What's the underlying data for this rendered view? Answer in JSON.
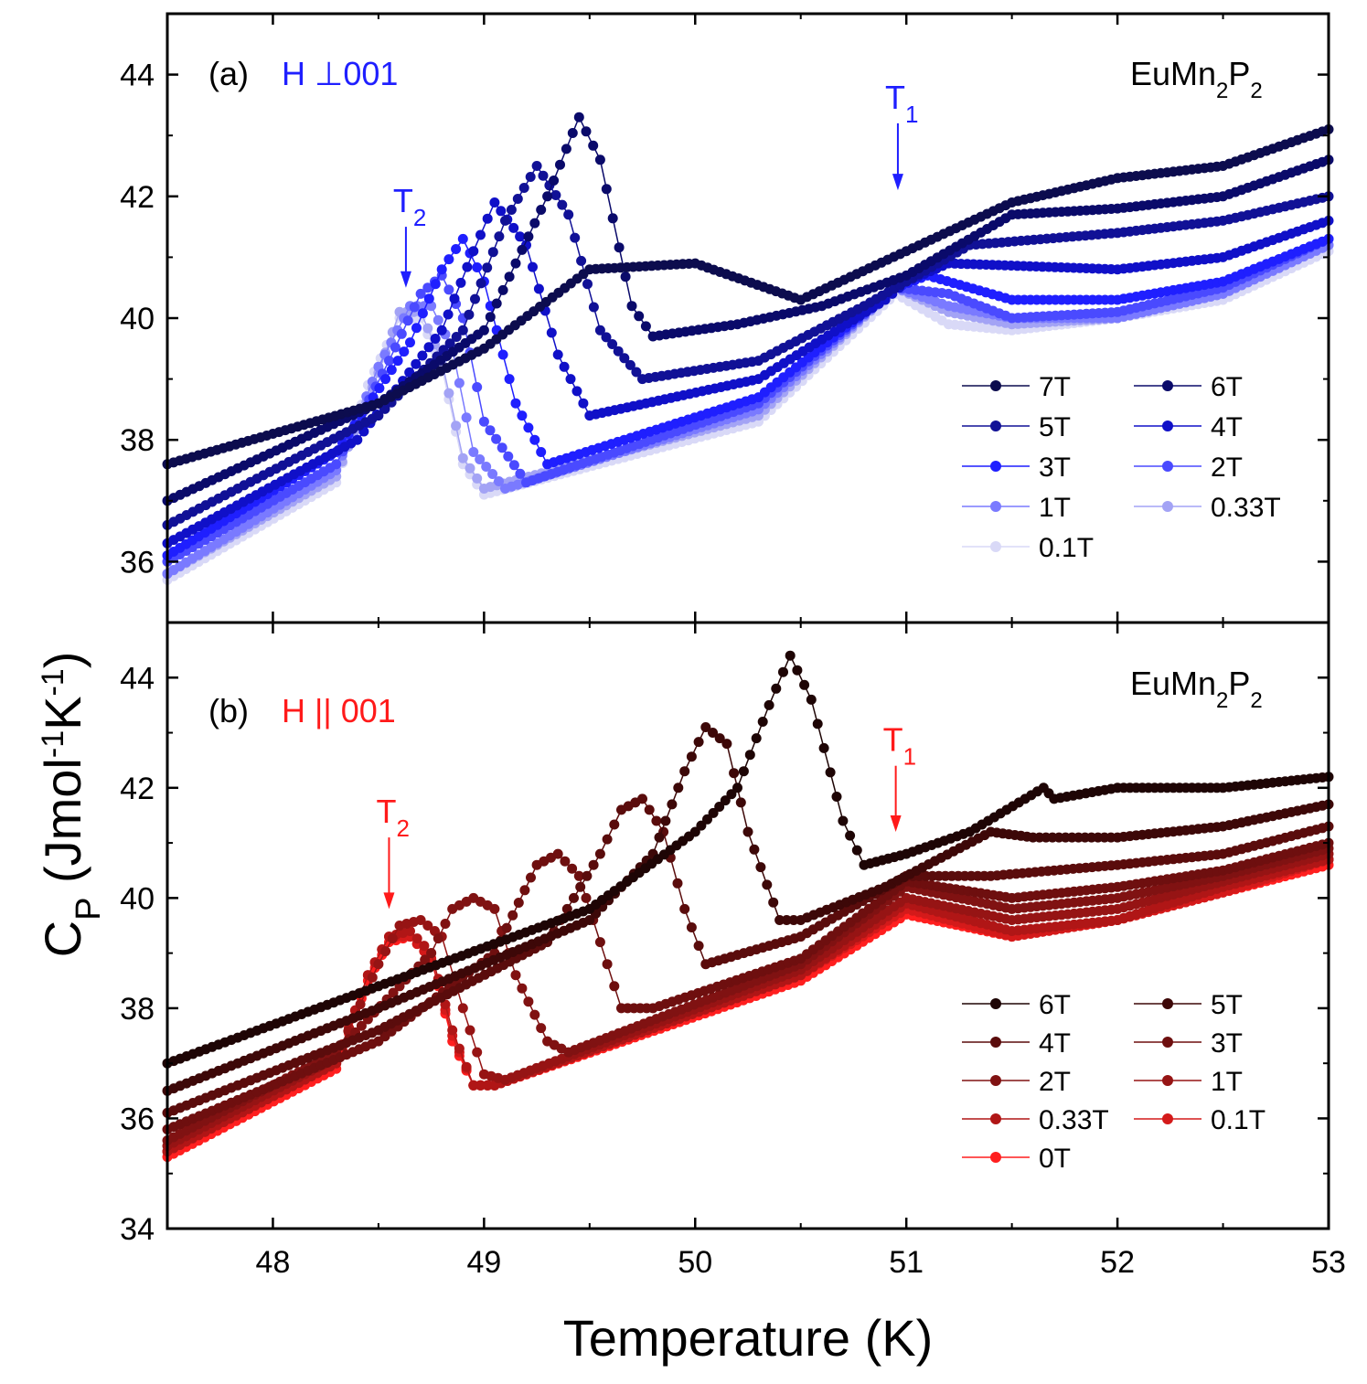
{
  "chart_data": [
    {
      "type": "line",
      "panel_label": "(a)",
      "orientation_label": "H ⊥001",
      "orientation_color": "#1f1fff",
      "compound": {
        "base": "EuMn",
        "sub1": "2",
        "mid": "P",
        "sub2": "2"
      },
      "xlim": [
        47.5,
        53
      ],
      "ylim": [
        35,
        45
      ],
      "yticks": [
        "36",
        "38",
        "40",
        "42",
        "44"
      ],
      "xticks": [],
      "annotations": [
        {
          "main": "T",
          "sub": "2",
          "x": 48.63,
          "y_from": 41.5,
          "y_to": 40.5,
          "color": "#1f1fff"
        },
        {
          "main": "T",
          "sub": "1",
          "x": 50.96,
          "y_from": 43.2,
          "y_to": 42.1,
          "color": "#1f1fff"
        }
      ],
      "series": [
        {
          "name": "7T",
          "color": "#0c0c4e",
          "x": [
            47.5,
            48.0,
            48.5,
            49.0,
            49.5,
            50.0,
            50.5,
            51.0,
            51.5,
            52.0,
            52.5,
            53.0
          ],
          "y": [
            37.6,
            38.1,
            38.6,
            39.5,
            40.8,
            40.9,
            40.3,
            41.1,
            41.9,
            42.3,
            42.5,
            43.1
          ]
        },
        {
          "name": "6T",
          "color": "#0a0a6a",
          "x": [
            47.5,
            48.5,
            49.0,
            49.3,
            49.45,
            49.55,
            49.7,
            49.8,
            50.2,
            50.6,
            51.0,
            51.5,
            52.0,
            52.5,
            53.0
          ],
          "y": [
            37.0,
            38.6,
            39.8,
            42.0,
            43.3,
            42.6,
            40.2,
            39.7,
            39.9,
            40.2,
            40.7,
            41.7,
            41.8,
            42.0,
            42.6
          ]
        },
        {
          "name": "5T",
          "color": "#111196",
          "x": [
            47.5,
            48.5,
            48.9,
            49.1,
            49.25,
            49.4,
            49.55,
            49.75,
            50.3,
            50.8,
            51.0,
            51.3,
            52.0,
            52.5,
            53.0
          ],
          "y": [
            36.6,
            38.4,
            39.8,
            41.6,
            42.5,
            41.7,
            39.8,
            39.0,
            39.3,
            40.2,
            40.6,
            41.2,
            41.4,
            41.6,
            42.0
          ]
        },
        {
          "name": "4T",
          "color": "#1010c8",
          "x": [
            47.5,
            48.4,
            48.8,
            48.95,
            49.05,
            49.2,
            49.35,
            49.5,
            50.3,
            50.9,
            51.0,
            51.2,
            52.0,
            52.5,
            53.0
          ],
          "y": [
            36.3,
            38.0,
            39.8,
            41.1,
            41.9,
            41.2,
            39.4,
            38.4,
            39.0,
            40.3,
            40.6,
            40.9,
            40.8,
            41.0,
            41.6
          ]
        },
        {
          "name": "3T",
          "color": "#1f1fff",
          "x": [
            47.5,
            48.3,
            48.65,
            48.8,
            48.9,
            49.0,
            49.15,
            49.3,
            50.3,
            50.95,
            51.1,
            51.5,
            52.0,
            52.5,
            53.0
          ],
          "y": [
            36.1,
            37.8,
            39.6,
            40.8,
            41.3,
            40.6,
            38.6,
            37.6,
            38.7,
            40.5,
            40.7,
            40.3,
            40.3,
            40.6,
            41.3
          ]
        },
        {
          "name": "2T",
          "color": "#4a4aff",
          "x": [
            47.5,
            48.3,
            48.55,
            48.7,
            48.8,
            48.9,
            49.0,
            49.2,
            50.3,
            50.95,
            51.2,
            51.5,
            52.0,
            52.5,
            53.0
          ],
          "y": [
            36.0,
            37.6,
            39.3,
            40.4,
            40.7,
            40.0,
            38.3,
            37.3,
            38.6,
            40.5,
            40.4,
            40.0,
            40.1,
            40.5,
            41.3
          ]
        },
        {
          "name": "1T",
          "color": "#7a7aff",
          "x": [
            47.5,
            48.3,
            48.5,
            48.65,
            48.75,
            48.85,
            48.95,
            49.1,
            50.3,
            50.95,
            51.2,
            51.5,
            52.0,
            52.5,
            53.0
          ],
          "y": [
            35.8,
            37.5,
            39.2,
            40.2,
            40.2,
            39.5,
            37.8,
            37.2,
            38.5,
            40.5,
            40.2,
            40.0,
            40.0,
            40.4,
            41.2
          ]
        },
        {
          "name": "0.33T",
          "color": "#a3a3f5",
          "x": [
            47.5,
            48.3,
            48.5,
            48.6,
            48.7,
            48.8,
            48.9,
            49.0,
            50.3,
            50.95,
            51.2,
            51.5,
            52.0,
            52.5,
            53.0
          ],
          "y": [
            35.8,
            37.4,
            39.1,
            40.1,
            40.1,
            39.3,
            37.7,
            37.2,
            38.4,
            40.5,
            40.1,
            39.9,
            40.0,
            40.4,
            41.2
          ]
        },
        {
          "name": "0.1T",
          "color": "#d9d9f7",
          "x": [
            47.5,
            48.3,
            48.45,
            48.6,
            48.7,
            48.8,
            48.9,
            49.0,
            50.3,
            50.95,
            51.2,
            51.5,
            52.0,
            52.5,
            53.0
          ],
          "y": [
            35.7,
            37.3,
            38.9,
            40.0,
            40.0,
            39.2,
            37.6,
            37.1,
            38.3,
            40.4,
            39.9,
            39.8,
            40.0,
            40.3,
            41.1
          ]
        }
      ]
    },
    {
      "type": "line",
      "panel_label": "(b)",
      "orientation_label": "H || 001",
      "orientation_color": "#ff1a1a",
      "compound": {
        "base": "EuMn",
        "sub1": "2",
        "mid": "P",
        "sub2": "2"
      },
      "xlim": [
        47.5,
        53
      ],
      "ylim": [
        34,
        45
      ],
      "yticks": [
        "34",
        "36",
        "38",
        "40",
        "42",
        "44"
      ],
      "xticks": [
        "48",
        "49",
        "50",
        "51",
        "52",
        "53"
      ],
      "xlabel": "Temperature (K)",
      "annotations": [
        {
          "main": "T",
          "sub": "2",
          "x": 48.55,
          "y_from": 41.1,
          "y_to": 39.8,
          "color": "#ff1a1a"
        },
        {
          "main": "T",
          "sub": "1",
          "x": 50.95,
          "y_from": 42.4,
          "y_to": 41.2,
          "color": "#ff1a1a"
        }
      ],
      "series": [
        {
          "name": "6T",
          "color": "#1e0505",
          "x": [
            47.5,
            48.5,
            49.5,
            50.0,
            50.2,
            50.35,
            50.45,
            50.55,
            50.7,
            50.8,
            51.0,
            51.3,
            51.65,
            51.7,
            52.0,
            52.5,
            53.0
          ],
          "y": [
            37.0,
            38.4,
            39.8,
            41.2,
            42.0,
            43.5,
            44.4,
            43.6,
            41.4,
            40.6,
            40.8,
            41.2,
            42.0,
            41.8,
            42.0,
            42.0,
            42.2
          ]
        },
        {
          "name": "5T",
          "color": "#3d0808",
          "x": [
            47.5,
            48.5,
            49.5,
            49.8,
            49.95,
            50.05,
            50.15,
            50.25,
            50.4,
            50.5,
            50.9,
            51.4,
            51.6,
            52.0,
            52.5,
            53.0
          ],
          "y": [
            36.5,
            38.0,
            39.6,
            40.8,
            42.3,
            43.1,
            42.8,
            41.2,
            39.6,
            39.6,
            40.2,
            41.2,
            41.1,
            41.1,
            41.3,
            41.7
          ]
        },
        {
          "name": "4T",
          "color": "#5a0c0c",
          "x": [
            47.5,
            48.5,
            49.3,
            49.55,
            49.65,
            49.75,
            49.85,
            49.95,
            50.05,
            50.5,
            51.0,
            51.4,
            52.0,
            52.5,
            53.0
          ],
          "y": [
            36.1,
            37.6,
            39.2,
            40.8,
            41.6,
            41.8,
            41.2,
            39.8,
            38.8,
            39.3,
            40.4,
            40.4,
            40.6,
            40.8,
            41.3
          ]
        },
        {
          "name": "3T",
          "color": "#6e0f0f",
          "x": [
            47.5,
            48.5,
            49.05,
            49.25,
            49.35,
            49.45,
            49.55,
            49.65,
            49.8,
            50.5,
            51.0,
            51.5,
            52.0,
            52.5,
            53.0
          ],
          "y": [
            35.8,
            37.4,
            39.0,
            40.6,
            40.8,
            40.4,
            39.2,
            38.0,
            38.0,
            38.9,
            40.3,
            40.0,
            40.2,
            40.5,
            41.0
          ]
        },
        {
          "name": "2T",
          "color": "#801212",
          "x": [
            47.5,
            48.3,
            48.75,
            48.85,
            48.95,
            49.05,
            49.15,
            49.3,
            49.4,
            50.5,
            51.0,
            51.5,
            52.0,
            52.5,
            53.0
          ],
          "y": [
            35.6,
            37.2,
            39.0,
            39.8,
            40.0,
            39.8,
            38.6,
            37.4,
            37.2,
            38.8,
            40.2,
            39.8,
            40.0,
            40.4,
            40.9
          ]
        },
        {
          "name": "1T",
          "color": "#961414",
          "x": [
            47.5,
            48.3,
            48.5,
            48.6,
            48.7,
            48.8,
            48.9,
            49.0,
            49.1,
            50.5,
            51.0,
            51.5,
            52.0,
            52.5,
            53.0
          ],
          "y": [
            35.5,
            37.1,
            38.8,
            39.5,
            39.6,
            39.3,
            38.0,
            36.8,
            36.7,
            38.7,
            40.0,
            39.6,
            39.8,
            40.3,
            40.8
          ]
        },
        {
          "name": "0.33T",
          "color": "#b01616",
          "x": [
            47.5,
            48.3,
            48.45,
            48.55,
            48.65,
            48.75,
            48.85,
            48.95,
            49.05,
            50.5,
            51.0,
            51.5,
            52.0,
            52.5,
            53.0
          ],
          "y": [
            35.4,
            37.0,
            38.6,
            39.3,
            39.4,
            39.0,
            37.6,
            36.6,
            36.6,
            38.6,
            39.9,
            39.4,
            39.6,
            40.2,
            40.7
          ]
        },
        {
          "name": "0.1T",
          "color": "#d41a1a",
          "x": [
            47.5,
            48.3,
            48.45,
            48.55,
            48.65,
            48.75,
            48.85,
            48.95,
            49.05,
            50.5,
            51.0,
            51.5,
            52.0,
            52.5,
            53.0
          ],
          "y": [
            35.4,
            37.0,
            38.6,
            39.3,
            39.3,
            38.9,
            37.5,
            36.6,
            36.6,
            38.6,
            39.8,
            39.3,
            39.6,
            40.1,
            40.7
          ]
        },
        {
          "name": "0T",
          "color": "#ff1f1f",
          "x": [
            47.5,
            48.3,
            48.45,
            48.55,
            48.65,
            48.75,
            48.85,
            48.95,
            49.05,
            50.5,
            51.0,
            51.5,
            52.0,
            52.5,
            53.0
          ],
          "y": [
            35.3,
            36.9,
            38.5,
            39.2,
            39.3,
            38.9,
            37.4,
            36.6,
            36.6,
            38.5,
            39.7,
            39.3,
            39.6,
            40.1,
            40.6
          ]
        }
      ]
    }
  ],
  "y_axis_title": {
    "main": "C",
    "sub": "P",
    "rest1": " (Jmol",
    "sup1": "-1",
    "rest2": "K",
    "sup2": "-1",
    "rest3": ")"
  }
}
